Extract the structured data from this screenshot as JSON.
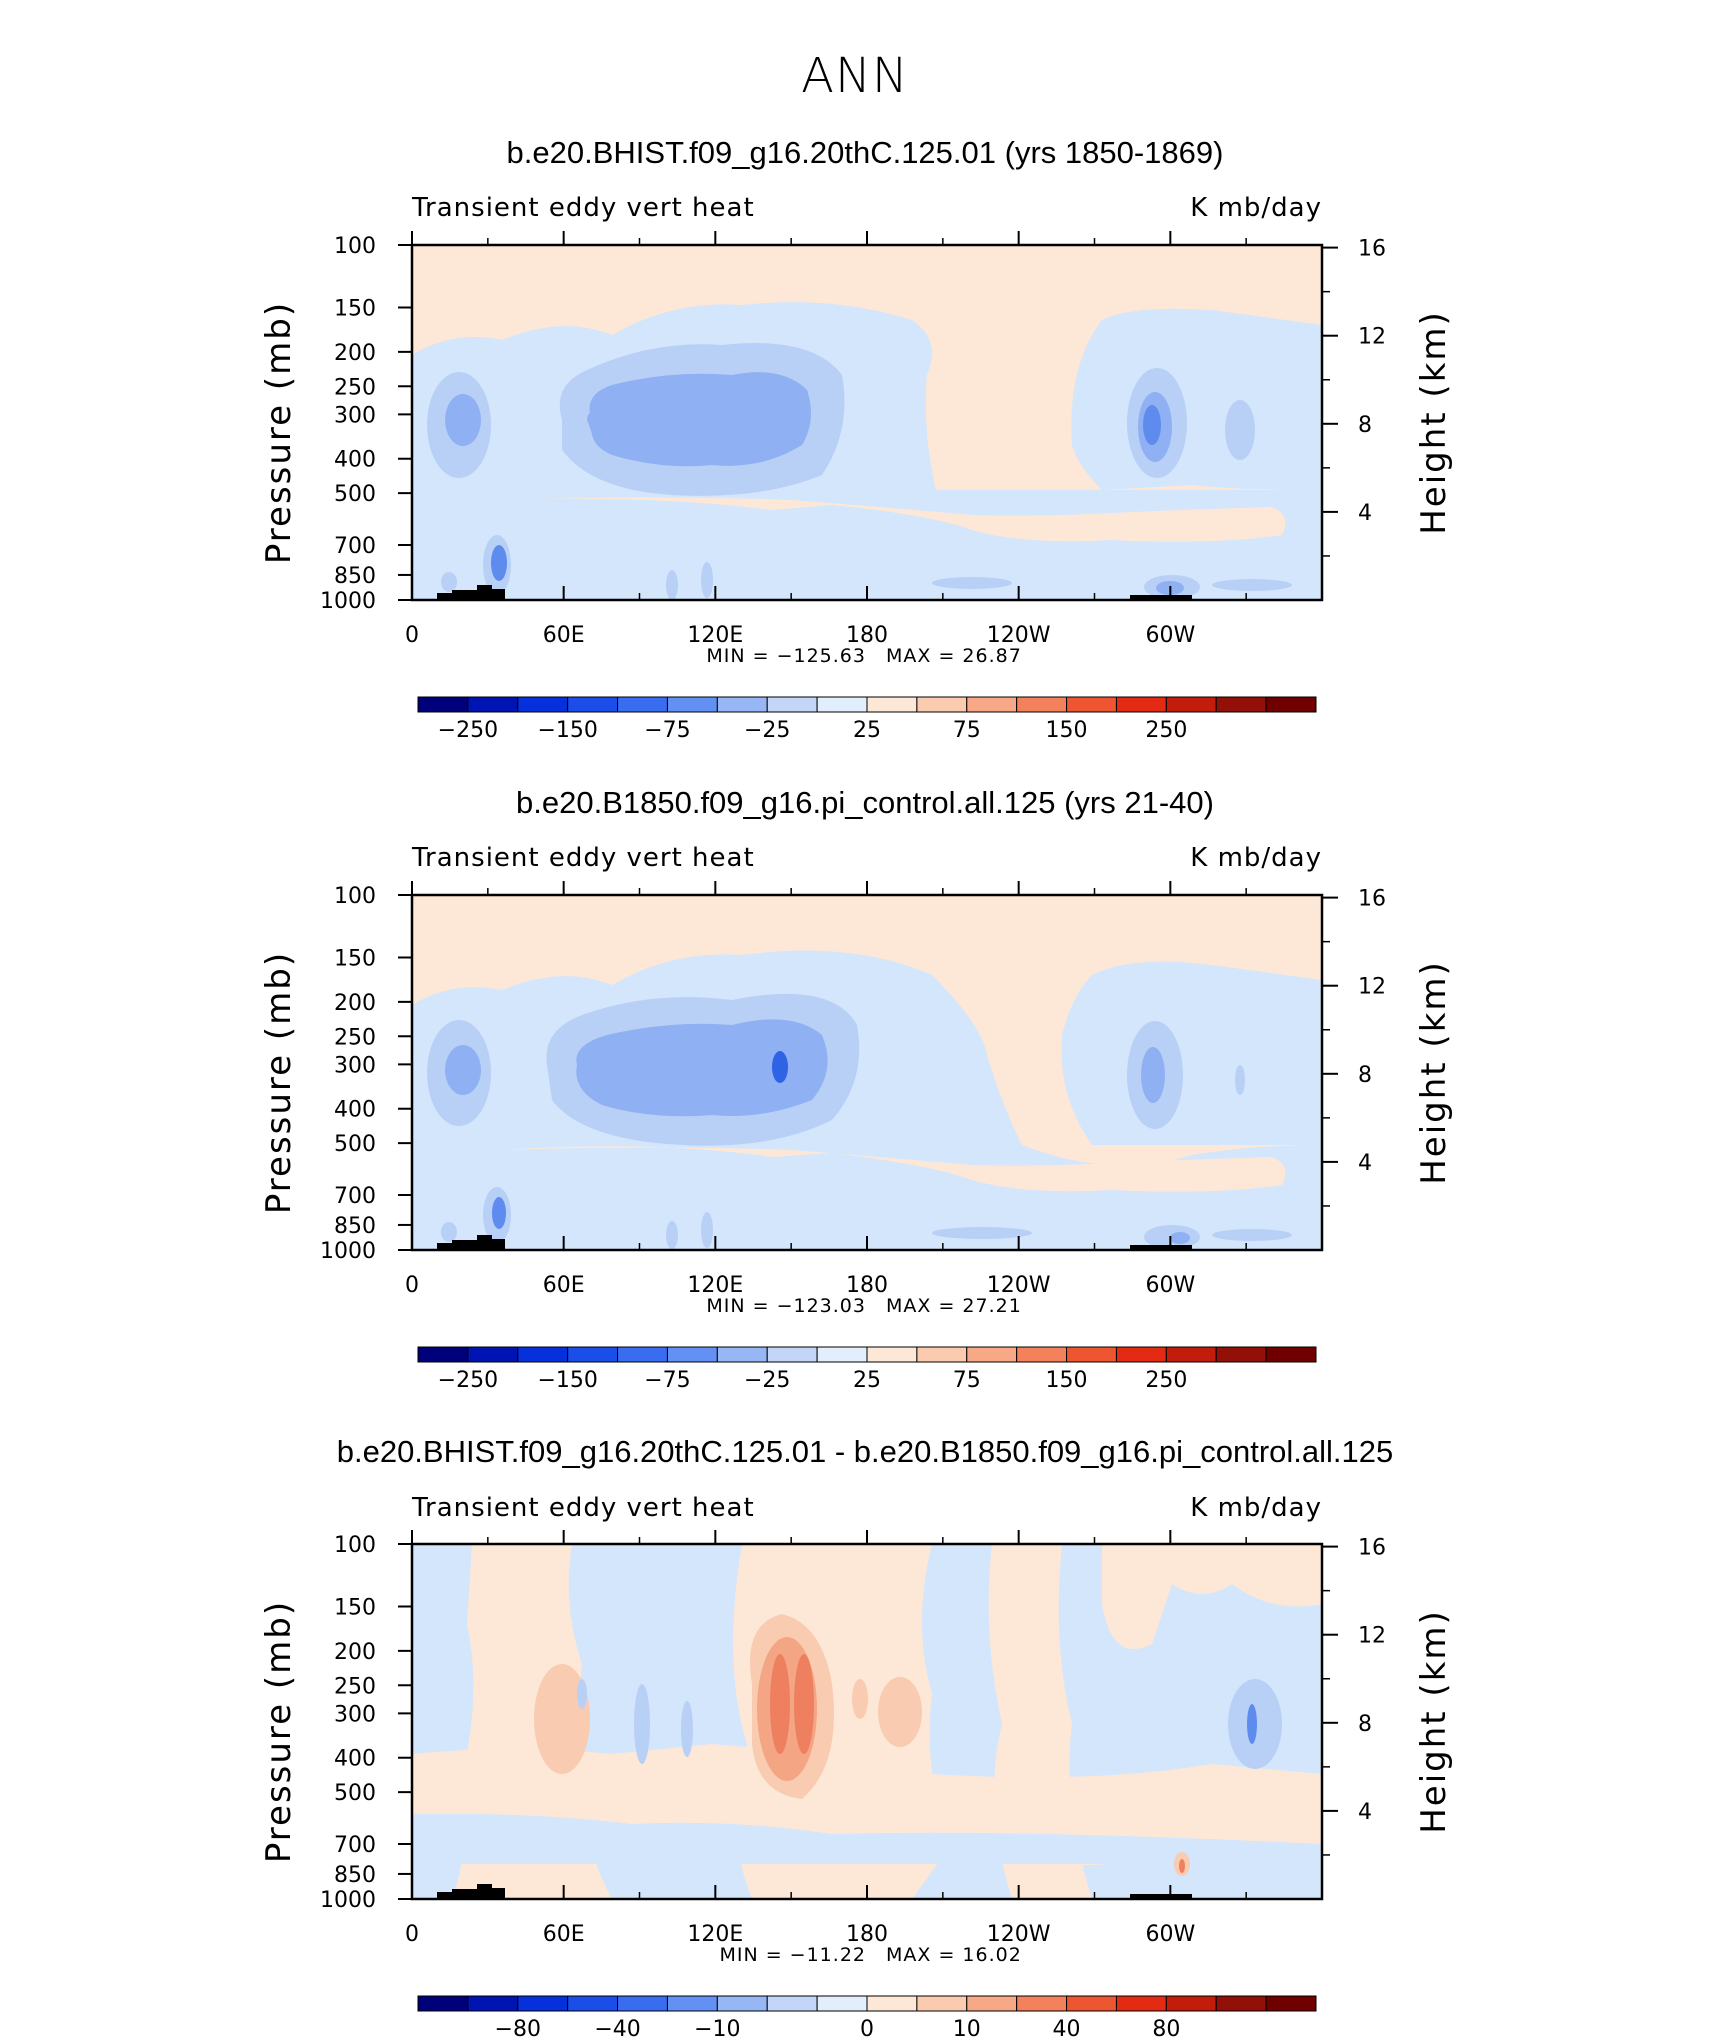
{
  "figure": {
    "title": "ANN"
  },
  "chart_data": [
    {
      "type": "heatmap",
      "title": "b.e20.BHIST.f09_g16.20thC.125.01 (yrs 1850-1869)",
      "left_label": "Transient eddy vert heat",
      "right_label": "K mb/day",
      "xlabel": "",
      "ylabel": "Pressure (mb)",
      "ylabel_right": "Height (km)",
      "x_ticks": [
        "0",
        "60E",
        "120E",
        "180",
        "120W",
        "60W"
      ],
      "y_ticks": [
        "100",
        "150",
        "200",
        "250",
        "300",
        "400",
        "500",
        "700",
        "850",
        "1000"
      ],
      "y_right_ticks": [
        "16",
        "12",
        "8",
        "4"
      ],
      "min": -125.63,
      "max": 26.87,
      "min_text": "MIN = −125.63",
      "max_text": "MAX =   26.87",
      "colorbar_labels": [
        "−250",
        "−150",
        "−75",
        "−25",
        "25",
        "75",
        "150",
        "250"
      ]
    },
    {
      "type": "heatmap",
      "title": "b.e20.B1850.f09_g16.pi_control.all.125 (yrs 21-40)",
      "left_label": "Transient eddy vert heat",
      "right_label": "K mb/day",
      "xlabel": "",
      "ylabel": "Pressure (mb)",
      "ylabel_right": "Height (km)",
      "x_ticks": [
        "0",
        "60E",
        "120E",
        "180",
        "120W",
        "60W"
      ],
      "y_ticks": [
        "100",
        "150",
        "200",
        "250",
        "300",
        "400",
        "500",
        "700",
        "850",
        "1000"
      ],
      "y_right_ticks": [
        "16",
        "12",
        "8",
        "4"
      ],
      "min": -123.03,
      "max": 27.21,
      "min_text": "MIN = −123.03",
      "max_text": "MAX =   27.21",
      "colorbar_labels": [
        "−250",
        "−150",
        "−75",
        "−25",
        "25",
        "75",
        "150",
        "250"
      ]
    },
    {
      "type": "heatmap",
      "title": "b.e20.BHIST.f09_g16.20thC.125.01 - b.e20.B1850.f09_g16.pi_control.all.125",
      "left_label": "Transient eddy vert heat",
      "right_label": "K mb/day",
      "xlabel": "",
      "ylabel": "Pressure (mb)",
      "ylabel_right": "Height (km)",
      "x_ticks": [
        "0",
        "60E",
        "120E",
        "180",
        "120W",
        "60W"
      ],
      "y_ticks": [
        "100",
        "150",
        "200",
        "250",
        "300",
        "400",
        "500",
        "700",
        "850",
        "1000"
      ],
      "y_right_ticks": [
        "16",
        "12",
        "8",
        "4"
      ],
      "min": -11.22,
      "max": 16.02,
      "min_text": "MIN = −11.22",
      "max_text": "MAX =   16.02",
      "colorbar_labels": [
        "−80",
        "−40",
        "−10",
        "0",
        "10",
        "40",
        "80"
      ]
    }
  ],
  "colors": {
    "bg_positive": "#fde8d8",
    "bg_negative": "#d4e6fb",
    "blue_1": "#b8d0f6",
    "blue_2": "#8fb0f2",
    "blue_3": "#5d8bee",
    "blue_4": "#2f62e4",
    "orange_1": "#f9cbb1",
    "orange_2": "#f4a584",
    "orange_3": "#ee8060",
    "topography": "#000000",
    "colorbar": [
      "#00007a",
      "#0014b4",
      "#0530dc",
      "#1b4de9",
      "#3a6cf0",
      "#6390f3",
      "#96b6f4",
      "#c4d6f8",
      "#e3eefd",
      "#fde8d8",
      "#fbcbb0",
      "#f7a886",
      "#f3825c",
      "#ee5631",
      "#e22b12",
      "#c21c0d",
      "#931008",
      "#700000"
    ]
  }
}
